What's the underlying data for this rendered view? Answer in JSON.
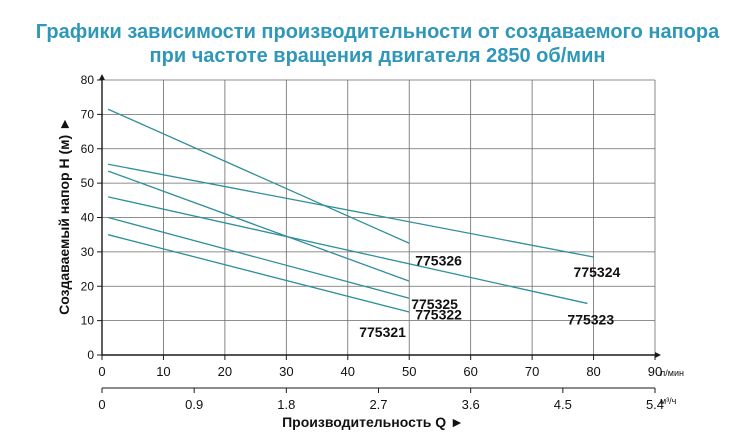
{
  "chart_data": {
    "type": "line",
    "title": "Графики зависимости производительности от создаваемого напора",
    "subtitle": "при частоте вращения двигателя 2850 об/мин",
    "ylabel": "Создаваемый напор H (м) ►",
    "xlabel": "Производительность Q  ►",
    "x_unit": "л/мин",
    "x2_unit": "м³/ч",
    "xlim": [
      0,
      90
    ],
    "ylim": [
      0,
      80
    ],
    "grid": true,
    "x_ticks": [
      "0",
      "10",
      "20",
      "30",
      "40",
      "50",
      "60",
      "70",
      "80",
      "90"
    ],
    "x2_ticks": [
      "0",
      "0.9",
      "1.8",
      "2.7",
      "3.6",
      "4.5",
      "5.4"
    ],
    "y_ticks": [
      "0",
      "10",
      "20",
      "30",
      "40",
      "50",
      "60",
      "70",
      "80"
    ],
    "series": [
      {
        "name": "775326",
        "x": [
          1,
          50
        ],
        "y": [
          71.5,
          32.5
        ]
      },
      {
        "name": "775324",
        "x": [
          1,
          80
        ],
        "y": [
          55.5,
          28.5
        ]
      },
      {
        "name": "775325",
        "x": [
          1,
          50
        ],
        "y": [
          53.5,
          21.5
        ]
      },
      {
        "name": "775323",
        "x": [
          1,
          79
        ],
        "y": [
          46,
          15
        ]
      },
      {
        "name": "775322",
        "x": [
          1,
          50
        ],
        "y": [
          40,
          16.5
        ]
      },
      {
        "name": "775321",
        "x": [
          1,
          50
        ],
        "y": [
          35,
          12.5
        ]
      }
    ]
  },
  "colors": {
    "title": "#2f97b9",
    "line": "#2f8f9b",
    "grid": "#6a6a6a",
    "axis": "#1a1a1a"
  }
}
